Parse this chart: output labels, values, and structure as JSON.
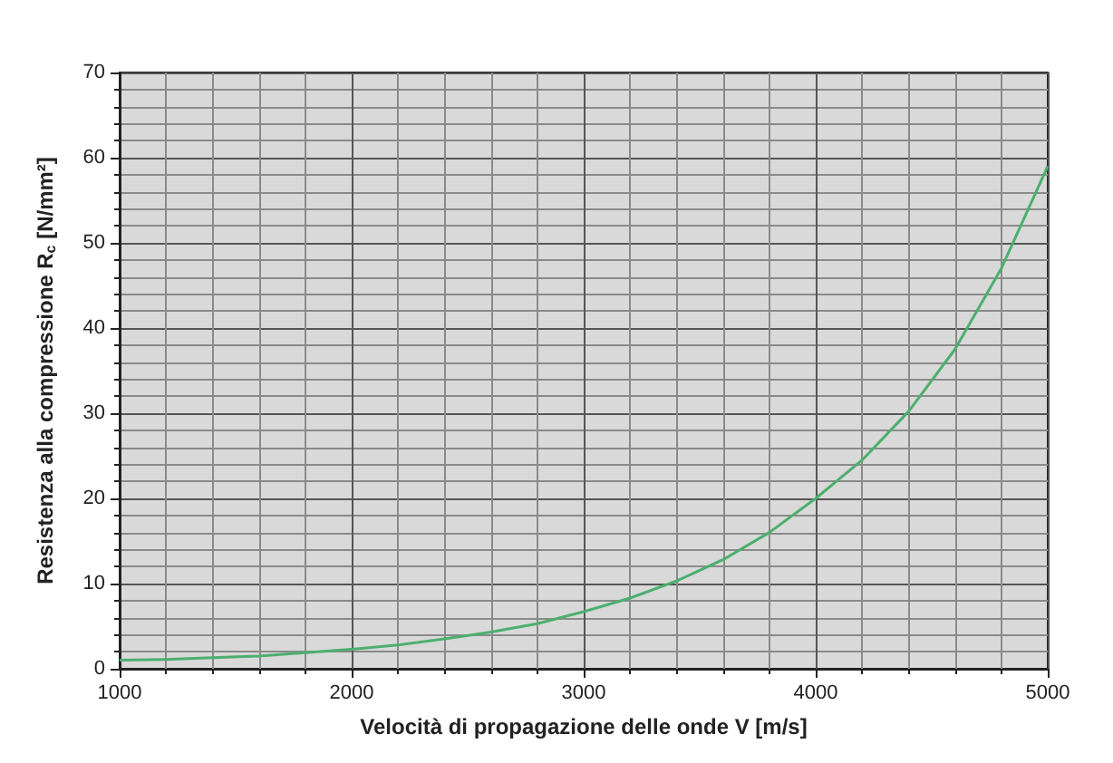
{
  "chart_data": {
    "type": "line",
    "xlabel": "Velocità di propagazione delle onde V [m/s]",
    "ylabel": "Resistenza alla compressione R$_{c}$ [N/mm²]",
    "x": [
      1000,
      1200,
      1400,
      1600,
      1800,
      2000,
      2200,
      2400,
      2600,
      2800,
      3000,
      3200,
      3400,
      3600,
      3800,
      4000,
      4200,
      4400,
      4600,
      4800,
      5000
    ],
    "series": [
      {
        "color": "#4caf6e",
        "values": [
          1,
          1.1,
          1.3,
          1.5,
          1.9,
          2.3,
          2.8,
          3.5,
          4.3,
          5.3,
          6.7,
          8.3,
          10.3,
          12.8,
          16,
          20,
          24.5,
          30.2,
          37.5,
          47,
          59
        ]
      }
    ],
    "xlim": [
      1000,
      5000
    ],
    "xticks": [
      1000,
      2000,
      3000,
      4000,
      5000
    ],
    "ylim": [
      0,
      70
    ],
    "yticks": [
      0,
      10,
      20,
      30,
      40,
      50,
      60,
      70
    ],
    "grid": true,
    "marker": "none",
    "line_style": "solid"
  }
}
